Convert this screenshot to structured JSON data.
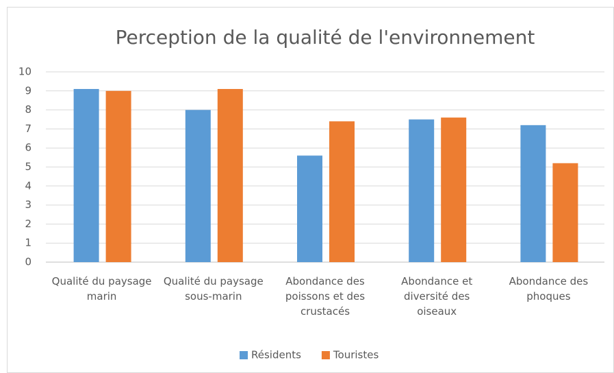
{
  "chart_data": {
    "type": "bar",
    "title": "Perception de la qualité de l'environnement",
    "categories": [
      "Qualité du paysage marin",
      "Qualité du paysage sous-marin",
      "Abondance des poissons et des crustacés",
      "Abondance et diversité des oiseaux",
      "Abondance des phoques"
    ],
    "series": [
      {
        "name": "Résidents",
        "color": "#5b9bd5",
        "values": [
          9.1,
          8.0,
          5.6,
          7.5,
          7.2
        ]
      },
      {
        "name": "Touristes",
        "color": "#ed7d31",
        "values": [
          9.0,
          9.1,
          7.4,
          7.6,
          5.2
        ]
      }
    ],
    "ylim": [
      0,
      10
    ],
    "yticks": [
      0,
      1,
      2,
      3,
      4,
      5,
      6,
      7,
      8,
      9,
      10
    ],
    "grid": true,
    "legend": "bottom"
  }
}
